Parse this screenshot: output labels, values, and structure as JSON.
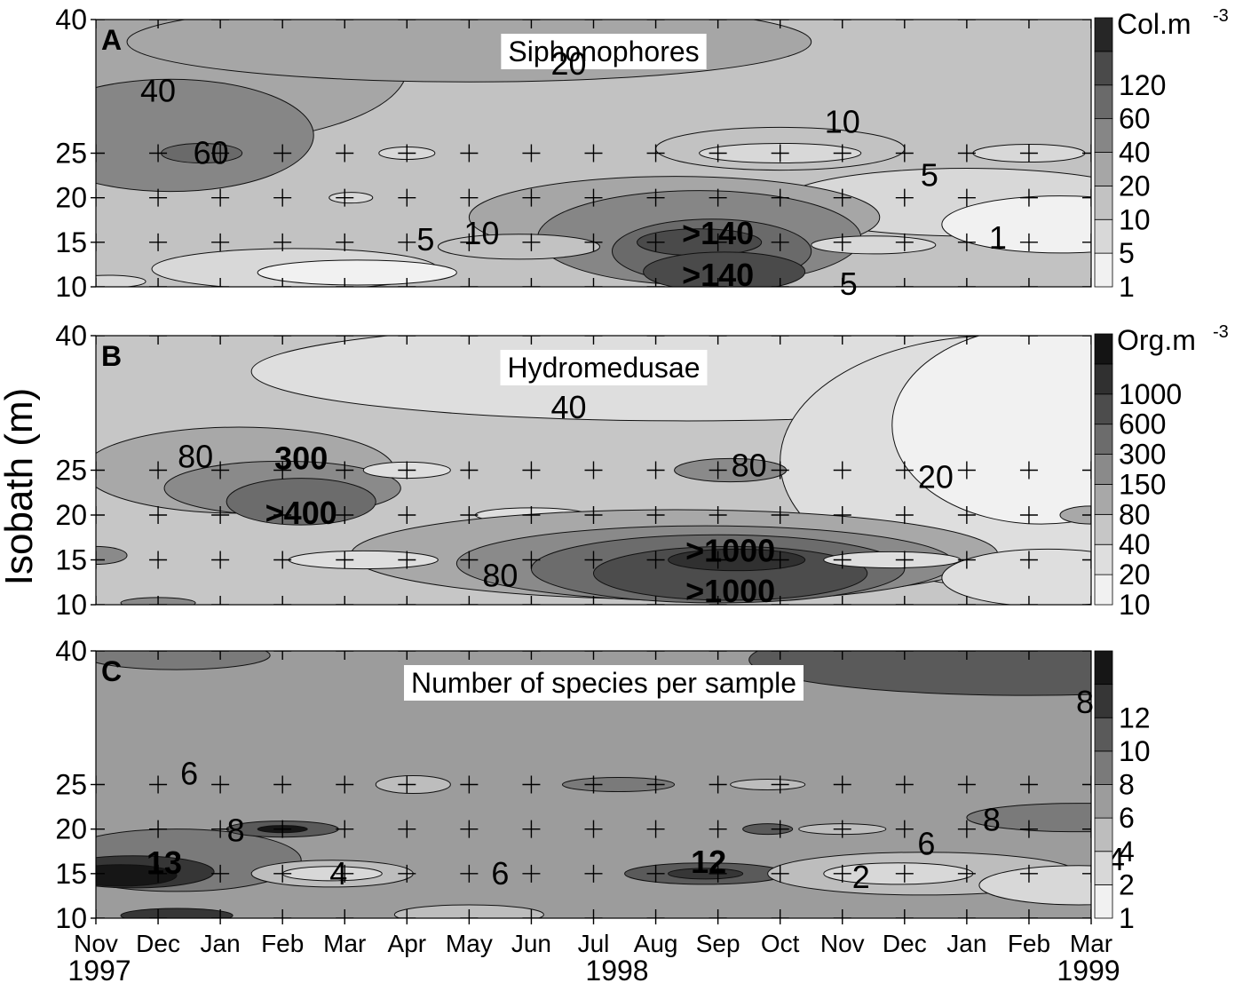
{
  "figure": {
    "ylabel": "Isobath (m)",
    "year_labels": [
      "1997",
      "1998",
      "1999"
    ]
  },
  "chart_data": [
    {
      "type": "heatmap",
      "panel_letter": "A",
      "title": "Siphonophores",
      "unit_label": "Col.m",
      "unit_superscript": "-3",
      "x_categories": [
        "Nov",
        "Dec",
        "Jan",
        "Feb",
        "Mar",
        "Apr",
        "May",
        "Jun",
        "Jul",
        "Aug",
        "Sep",
        "Oct",
        "Nov",
        "Dec",
        "Jan",
        "Feb",
        "Mar"
      ],
      "y_ticks": [
        40,
        25,
        20,
        15,
        10
      ],
      "ylim": [
        10,
        40
      ],
      "colorbar_levels": [
        "1",
        "5",
        "10",
        "20",
        "40",
        "60",
        "120"
      ],
      "colors": [
        "#f1f1f1",
        "#d8d8d8",
        "#c2c2c2",
        "#a6a6a6",
        "#868686",
        "#6a6a6a",
        "#4a4a4a",
        "#262626"
      ],
      "annotations": [
        {
          "text": "40",
          "month": 1.0,
          "depth": 32
        },
        {
          "text": "60",
          "month": 1.85,
          "depth": 25
        },
        {
          "text": "20",
          "month": 7.6,
          "depth": 35
        },
        {
          "text": "10",
          "month": 12.0,
          "depth": 28.5
        },
        {
          "text": "5",
          "month": 13.4,
          "depth": 22.5
        },
        {
          "text": "5",
          "month": 5.3,
          "depth": 15.3
        },
        {
          "text": "10",
          "month": 6.2,
          "depth": 16
        },
        {
          "text": ">140",
          "month": 10.0,
          "depth": 16
        },
        {
          "text": ">140",
          "month": 10.0,
          "depth": 11.3
        },
        {
          "text": "5",
          "month": 12.1,
          "depth": 10.3
        },
        {
          "text": "1",
          "month": 14.5,
          "depth": 15.5
        }
      ]
    },
    {
      "type": "heatmap",
      "panel_letter": "B",
      "title": "Hydromedusae",
      "unit_label": "Org.m",
      "unit_superscript": "-3",
      "x_categories": [
        "Nov",
        "Dec",
        "Jan",
        "Feb",
        "Mar",
        "Apr",
        "May",
        "Jun",
        "Jul",
        "Aug",
        "Sep",
        "Oct",
        "Nov",
        "Dec",
        "Jan",
        "Feb",
        "Mar"
      ],
      "y_ticks": [
        40,
        25,
        20,
        15,
        10
      ],
      "ylim": [
        10,
        40
      ],
      "colorbar_levels": [
        "10",
        "20",
        "40",
        "80",
        "150",
        "300",
        "600",
        "1000"
      ],
      "colors": [
        "#f1f1f1",
        "#dedede",
        "#c6c6c6",
        "#a8a8a8",
        "#8a8a8a",
        "#6c6c6c",
        "#4c4c4c",
        "#303030",
        "#141414"
      ],
      "annotations": [
        {
          "text": "80",
          "month": 1.6,
          "depth": 26.5
        },
        {
          "text": "300",
          "month": 3.3,
          "depth": 26.3
        },
        {
          "text": ">400",
          "month": 3.3,
          "depth": 20.2
        },
        {
          "text": "40",
          "month": 7.6,
          "depth": 32
        },
        {
          "text": "80",
          "month": 10.5,
          "depth": 25.5
        },
        {
          "text": "20",
          "month": 13.5,
          "depth": 24.2
        },
        {
          "text": ">1000",
          "month": 10.2,
          "depth": 16
        },
        {
          "text": ">1000",
          "month": 10.2,
          "depth": 11.5
        },
        {
          "text": "80",
          "month": 6.5,
          "depth": 13.2
        }
      ]
    },
    {
      "type": "heatmap",
      "panel_letter": "C",
      "title": "Number of species per sample",
      "unit_label": "",
      "unit_superscript": "",
      "x_categories": [
        "Nov",
        "Dec",
        "Jan",
        "Feb",
        "Mar",
        "Apr",
        "May",
        "Jun",
        "Jul",
        "Aug",
        "Sep",
        "Oct",
        "Nov",
        "Dec",
        "Jan",
        "Feb",
        "Mar"
      ],
      "y_ticks": [
        40,
        25,
        20,
        15,
        10
      ],
      "ylim": [
        10,
        40
      ],
      "colorbar_levels": [
        "1",
        "2",
        "4",
        "6",
        "8",
        "10",
        "12"
      ],
      "colors": [
        "#f1f1f1",
        "#d8d8d8",
        "#bdbdbd",
        "#9c9c9c",
        "#7a7a7a",
        "#5a5a5a",
        "#363636",
        "#161616"
      ],
      "annotations": [
        {
          "text": "6",
          "month": 1.5,
          "depth": 26.2
        },
        {
          "text": "8",
          "month": 2.25,
          "depth": 19.8
        },
        {
          "text": "13",
          "month": 1.1,
          "depth": 16.2
        },
        {
          "text": "4",
          "month": 3.9,
          "depth": 15
        },
        {
          "text": "6",
          "month": 6.5,
          "depth": 15
        },
        {
          "text": "12",
          "month": 9.85,
          "depth": 16.3
        },
        {
          "text": "6",
          "month": 13.35,
          "depth": 18.3
        },
        {
          "text": "2",
          "month": 12.3,
          "depth": 14.6
        },
        {
          "text": "8",
          "month": 14.4,
          "depth": 21
        },
        {
          "text": "8",
          "month": 15.9,
          "depth": 34.2
        },
        {
          "text": "4",
          "month": 16.4,
          "depth": 16.6
        }
      ]
    }
  ]
}
